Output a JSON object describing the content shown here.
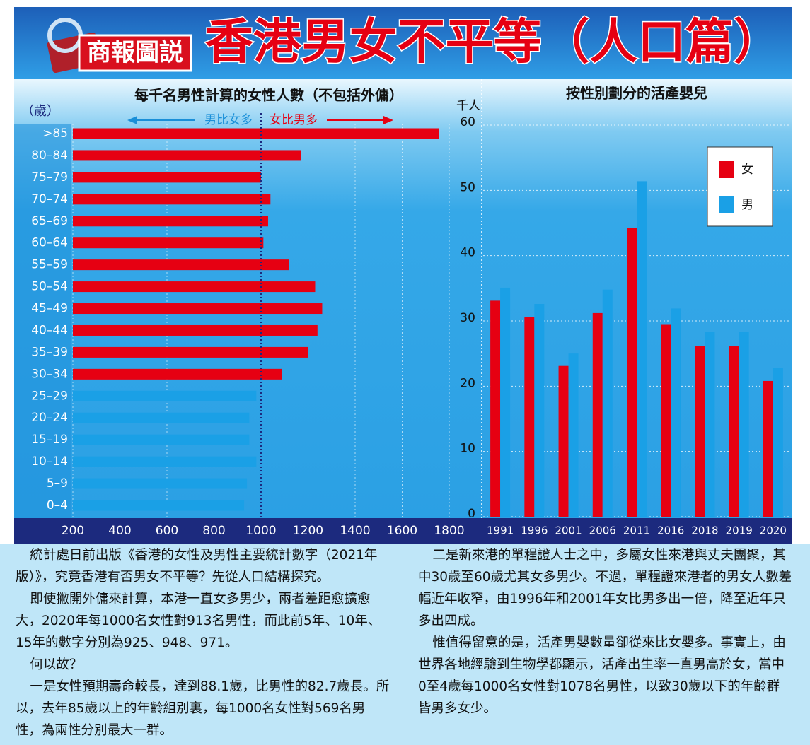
{
  "header": {
    "logo": "商報圖説",
    "title": "香港男女不平等（人口篇）"
  },
  "chart_data": [
    {
      "type": "hbar",
      "title": "每千名男性計算的女性人數（不包括外傭）",
      "y_label": "（歲）",
      "annotations": [
        "男比女多",
        "女比男多"
      ],
      "categories": [
        ">85",
        "80–84",
        "75–79",
        "70–74",
        "65–69",
        "60–64",
        "55–59",
        "50–54",
        "45–49",
        "40–44",
        "35–39",
        "30–34",
        "25–29",
        "20–24",
        "15–19",
        "10–14",
        "5–9",
        "0–4"
      ],
      "values": [
        1757,
        1170,
        1000,
        1040,
        1030,
        1010,
        1120,
        1230,
        1260,
        1240,
        1200,
        1090,
        980,
        950,
        950,
        980,
        940,
        928
      ],
      "colors": [
        "#e60012",
        "#e60012",
        "#e60012",
        "#e60012",
        "#e60012",
        "#e60012",
        "#e60012",
        "#e60012",
        "#e60012",
        "#e60012",
        "#e60012",
        "#e60012",
        "#1aa0e6",
        "#1aa0e6",
        "#1aa0e6",
        "#1aa0e6",
        "#1aa0e6",
        "#1aa0e6"
      ],
      "xlim": [
        200,
        1800
      ],
      "xticks": [
        200,
        400,
        600,
        800,
        1000,
        1200,
        1400,
        1600,
        1800
      ],
      "reference_line": 1000,
      "grid": true
    },
    {
      "type": "bar",
      "title": "按性別劃分的活產嬰兒",
      "y_label": "千人",
      "categories": [
        "1991",
        "1996",
        "2001",
        "2006",
        "2011",
        "2016",
        "2018",
        "2019",
        "2020"
      ],
      "series": [
        {
          "name": "女",
          "color": "#e60012",
          "values": [
            33.1,
            30.6,
            23.1,
            31.2,
            44.2,
            29.4,
            26.1,
            26.1,
            20.8
          ]
        },
        {
          "name": "男",
          "color": "#1aa0e6",
          "values": [
            35.1,
            32.6,
            25.0,
            34.8,
            51.4,
            31.9,
            28.3,
            28.3,
            22.8
          ]
        }
      ],
      "ylim": [
        0,
        60
      ],
      "yticks": [
        0,
        10,
        20,
        30,
        40,
        50,
        60
      ],
      "grid": true,
      "legend": "top-right"
    }
  ],
  "article": {
    "paragraphs": [
      "統計處日前出版《香港的女性及男性主要統計數字（2021年版）》，究竟香港有否男女不平等？先從人口結構探究。",
      "即使撇開外傭來計算，本港一直女多男少，兩者差距愈擴愈大，2020年每1000名女性對913名男性，而此前5年、10年、15年的數字分別為925、948、971。",
      "何以故？",
      "一是女性預期壽命較長，達到88.1歲，比男性的82.7歲長。所以，去年85歲以上的年齡組別裏，每1000名女性對569名男性，為兩性分別最大一群。",
      "二是新來港的單程證人士之中，多屬女性來港與丈夫團聚，其中30歲至60歲尤其女多男少。不過，單程證來港者的男女人數差幅近年收窄，由1996年和2001年女比男多出一倍，降至近年只多出四成。",
      "惟值得留意的是，活產男嬰數量卻從來比女嬰多。事實上，由世界各地經驗到生物學都顯示，活產出生率一直男高於女，當中0至4歲每1000名女性對1078名男性，以致30歲以下的年齡群皆男多女少。"
    ]
  }
}
